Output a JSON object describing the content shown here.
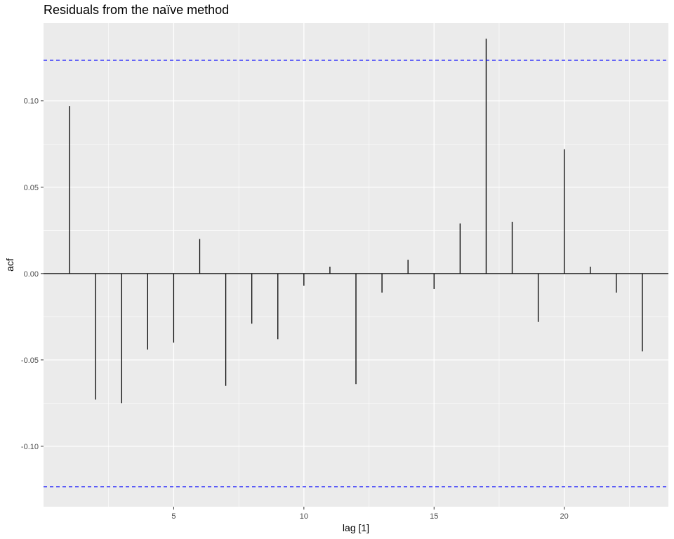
{
  "chart_data": {
    "type": "bar",
    "title": "Residuals from the naïve method",
    "xlabel": "lag [1]",
    "ylabel": "acf",
    "xlim": [
      0,
      24
    ],
    "ylim": [
      -0.135,
      0.145
    ],
    "x_ticks": [
      5,
      10,
      15,
      20
    ],
    "y_ticks": [
      -0.1,
      -0.05,
      0.0,
      0.05,
      0.1
    ],
    "y_tick_labels": [
      "-0.10",
      "-0.05",
      "0.00",
      "0.05",
      "0.10"
    ],
    "confidence_bound": 0.1235,
    "confidence_color": "#0000ff",
    "bar_color": "#000000",
    "panel_background": "#ebebeb",
    "grid": true,
    "lags": [
      1,
      2,
      3,
      4,
      5,
      6,
      7,
      8,
      9,
      10,
      11,
      12,
      13,
      14,
      15,
      16,
      17,
      18,
      19,
      20,
      21,
      22,
      23
    ],
    "values": [
      0.097,
      -0.073,
      -0.075,
      -0.044,
      -0.04,
      0.02,
      -0.065,
      -0.029,
      -0.038,
      -0.007,
      0.004,
      -0.064,
      -0.011,
      0.008,
      -0.009,
      0.029,
      0.136,
      0.03,
      -0.028,
      0.072,
      0.004,
      -0.011,
      -0.045
    ]
  }
}
